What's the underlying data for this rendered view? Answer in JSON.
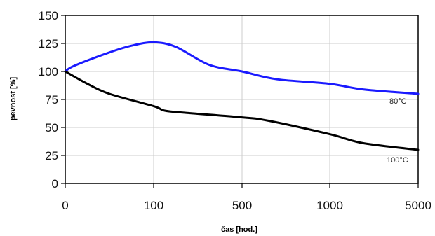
{
  "chart_data": {
    "type": "line",
    "title": "",
    "xlabel": "čas [hod.]",
    "ylabel": "pevnost [%]",
    "x_tick_labels": [
      "0",
      "100",
      "500",
      "1000",
      "5000"
    ],
    "x_scale": "categorical-breakpoints",
    "ylim": [
      0,
      150
    ],
    "y_ticks": [
      0,
      25,
      50,
      75,
      100,
      125,
      150
    ],
    "grid": true,
    "legend": "none (inline series labels)",
    "series": [
      {
        "name": "80°C",
        "color": "#1a1aff",
        "points": [
          {
            "x": 0,
            "y": 100
          },
          {
            "x": 10,
            "y": 105
          },
          {
            "x": 50,
            "y": 117
          },
          {
            "x": 75,
            "y": 123
          },
          {
            "x": 100,
            "y": 126
          },
          {
            "x": 200,
            "y": 122
          },
          {
            "x": 350,
            "y": 106
          },
          {
            "x": 500,
            "y": 100
          },
          {
            "x": 700,
            "y": 93
          },
          {
            "x": 1000,
            "y": 89
          },
          {
            "x": 2500,
            "y": 84
          },
          {
            "x": 5000,
            "y": 80
          }
        ]
      },
      {
        "name": "100°C",
        "color": "#000000",
        "points": [
          {
            "x": 0,
            "y": 100
          },
          {
            "x": 25,
            "y": 89
          },
          {
            "x": 50,
            "y": 80
          },
          {
            "x": 100,
            "y": 69
          },
          {
            "x": 150,
            "y": 65
          },
          {
            "x": 250,
            "y": 63
          },
          {
            "x": 500,
            "y": 59
          },
          {
            "x": 650,
            "y": 56
          },
          {
            "x": 1000,
            "y": 44
          },
          {
            "x": 2500,
            "y": 36
          },
          {
            "x": 5000,
            "y": 30
          }
        ]
      }
    ]
  },
  "labels": {
    "series_80": "80°C",
    "series_100": "100°C"
  },
  "colors": {
    "grid": "#cccccc",
    "axis": "#000000",
    "frame": "#000000"
  }
}
